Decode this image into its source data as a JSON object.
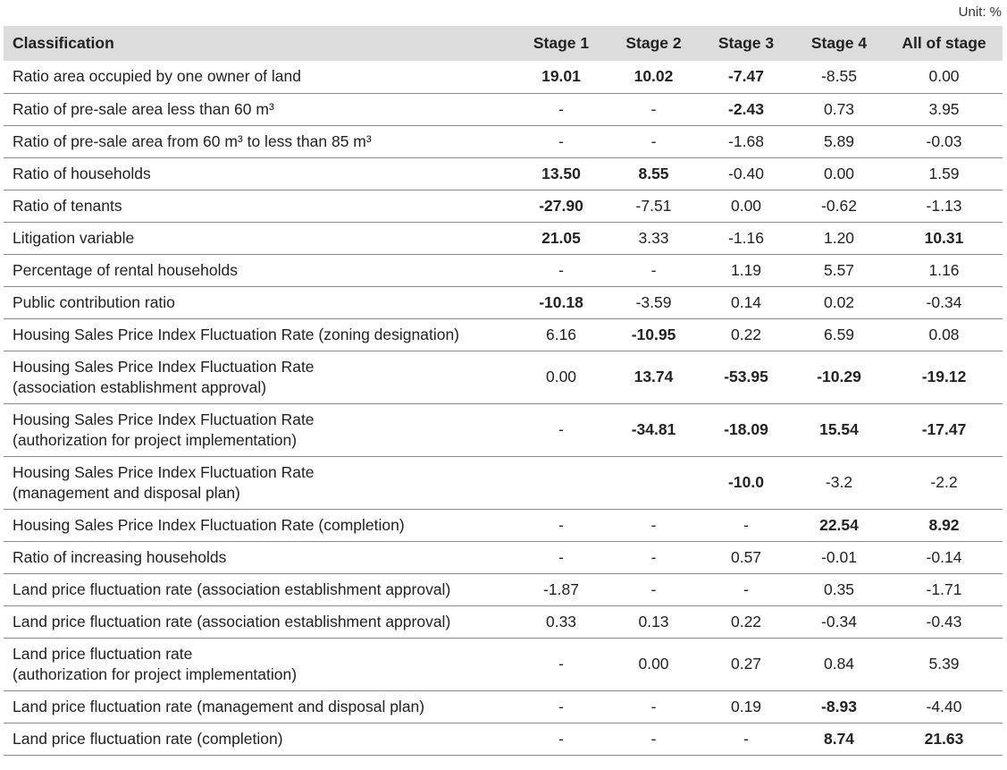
{
  "unit_label": "Unit: %",
  "headers": [
    "Classification",
    "Stage 1",
    "Stage 2",
    "Stage 3",
    "Stage 4",
    "All of stage"
  ],
  "rows": [
    {
      "label": [
        "Ratio area occupied by one owner of land"
      ],
      "values": [
        "19.01",
        "10.02",
        "-7.47",
        "-8.55",
        "0.00"
      ],
      "bold": [
        true,
        true,
        true,
        false,
        false
      ]
    },
    {
      "label": [
        "Ratio of pre-sale area less than 60 m³"
      ],
      "values": [
        "-",
        "-",
        "-2.43",
        "0.73",
        "3.95"
      ],
      "bold": [
        false,
        false,
        true,
        false,
        false
      ]
    },
    {
      "label": [
        "Ratio of pre-sale area from 60 m³ to less than 85 m³"
      ],
      "values": [
        "-",
        "-",
        "-1.68",
        "5.89",
        "-0.03"
      ],
      "bold": [
        false,
        false,
        false,
        false,
        false
      ]
    },
    {
      "label": [
        "Ratio of households"
      ],
      "values": [
        "13.50",
        "8.55",
        "-0.40",
        "0.00",
        "1.59"
      ],
      "bold": [
        true,
        true,
        false,
        false,
        false
      ]
    },
    {
      "label": [
        "Ratio of tenants"
      ],
      "values": [
        "-27.90",
        "-7.51",
        "0.00",
        "-0.62",
        "-1.13"
      ],
      "bold": [
        true,
        false,
        false,
        false,
        false
      ]
    },
    {
      "label": [
        "Litigation variable"
      ],
      "values": [
        "21.05",
        "3.33",
        "-1.16",
        "1.20",
        "10.31"
      ],
      "bold": [
        true,
        false,
        false,
        false,
        true
      ]
    },
    {
      "label": [
        "Percentage of rental households"
      ],
      "values": [
        "-",
        "-",
        "1.19",
        "5.57",
        "1.16"
      ],
      "bold": [
        false,
        false,
        false,
        false,
        false
      ]
    },
    {
      "label": [
        "Public contribution ratio"
      ],
      "values": [
        "-10.18",
        "-3.59",
        "0.14",
        "0.02",
        "-0.34"
      ],
      "bold": [
        true,
        false,
        false,
        false,
        false
      ]
    },
    {
      "label": [
        "Housing Sales Price Index Fluctuation Rate (zoning designation)"
      ],
      "values": [
        "6.16",
        "-10.95",
        "0.22",
        "6.59",
        "0.08"
      ],
      "bold": [
        false,
        true,
        false,
        false,
        false
      ]
    },
    {
      "label": [
        "Housing Sales Price Index Fluctuation Rate",
        "(association establishment approval)"
      ],
      "values": [
        "0.00",
        "13.74",
        "-53.95",
        "-10.29",
        "-19.12"
      ],
      "bold": [
        false,
        true,
        true,
        true,
        true
      ]
    },
    {
      "label": [
        "Housing Sales Price Index Fluctuation Rate",
        "(authorization for project implementation)"
      ],
      "values": [
        "-",
        "-34.81",
        "-18.09",
        "15.54",
        "-17.47"
      ],
      "bold": [
        false,
        true,
        true,
        true,
        true
      ]
    },
    {
      "label": [
        "Housing Sales Price Index Fluctuation Rate",
        "(management and disposal plan)"
      ],
      "values": [
        "",
        "",
        "-10.0",
        "-3.2",
        "-2.2"
      ],
      "bold": [
        false,
        false,
        true,
        false,
        false
      ]
    },
    {
      "label": [
        "Housing Sales Price Index Fluctuation Rate (completion)"
      ],
      "values": [
        "-",
        "-",
        "-",
        "22.54",
        "8.92"
      ],
      "bold": [
        false,
        false,
        false,
        true,
        true
      ]
    },
    {
      "label": [
        "Ratio of increasing households"
      ],
      "values": [
        "-",
        "-",
        "0.57",
        "-0.01",
        "-0.14"
      ],
      "bold": [
        false,
        false,
        false,
        false,
        false
      ]
    },
    {
      "label": [
        "Land price fluctuation rate (association establishment approval)"
      ],
      "values": [
        "-1.87",
        "-",
        "-",
        "0.35",
        "-1.71"
      ],
      "bold": [
        false,
        false,
        false,
        false,
        false
      ]
    },
    {
      "label": [
        "Land price fluctuation rate (association establishment approval)"
      ],
      "values": [
        "0.33",
        "0.13",
        "0.22",
        "-0.34",
        "-0.43"
      ],
      "bold": [
        false,
        false,
        false,
        false,
        false
      ]
    },
    {
      "label": [
        "Land price fluctuation rate",
        "(authorization for project implementation)"
      ],
      "values": [
        "-",
        "0.00",
        "0.27",
        "0.84",
        "5.39"
      ],
      "bold": [
        false,
        false,
        false,
        false,
        false
      ]
    },
    {
      "label": [
        "Land price fluctuation rate (management and disposal plan)"
      ],
      "values": [
        "-",
        "-",
        "0.19",
        "-8.93",
        "-4.40"
      ],
      "bold": [
        false,
        false,
        false,
        true,
        false
      ]
    },
    {
      "label": [
        "Land price fluctuation rate (completion)"
      ],
      "values": [
        "-",
        "-",
        "-",
        "8.74",
        "21.63"
      ],
      "bold": [
        false,
        false,
        false,
        true,
        true
      ]
    }
  ]
}
